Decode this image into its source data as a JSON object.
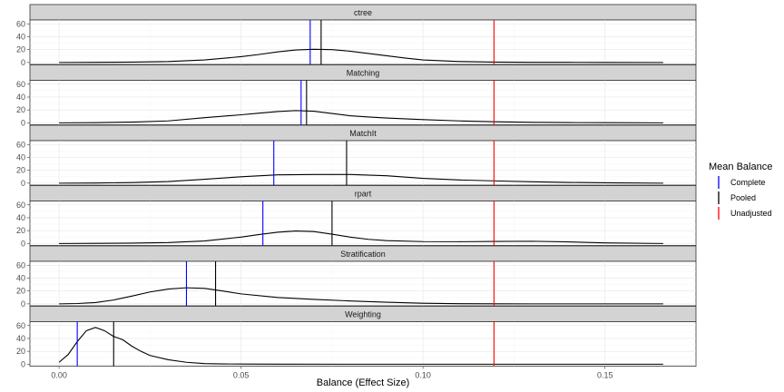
{
  "chart_data": {
    "type": "area",
    "xlabel": "Balance (Effect Size)",
    "ylabel": "",
    "xlim": [
      -0.008,
      0.175
    ],
    "ylim": [
      -3,
      66
    ],
    "x_ticks": [
      0.0,
      0.05,
      0.1,
      0.15
    ],
    "x_tick_labels": [
      "0.00",
      "0.05",
      "0.10",
      "0.15"
    ],
    "y_ticks": [
      0,
      20,
      40,
      60
    ],
    "y_tick_labels": [
      "0",
      "20",
      "40",
      "60"
    ],
    "grid": true,
    "legend": {
      "title": "Mean Balance",
      "position": "right",
      "entries": [
        {
          "label": "Complete",
          "color": "#0000ff"
        },
        {
          "label": "Pooled",
          "color": "#000000"
        },
        {
          "label": "Unadjusted",
          "color": "#ff0000"
        }
      ]
    },
    "panels": [
      {
        "name": "ctree",
        "density": {
          "x": [
            0.0,
            0.01,
            0.02,
            0.03,
            0.04,
            0.05,
            0.055,
            0.06,
            0.065,
            0.07,
            0.075,
            0.08,
            0.085,
            0.09,
            0.095,
            0.1,
            0.11,
            0.12,
            0.13,
            0.14,
            0.15,
            0.166
          ],
          "y": [
            0.0,
            0.2,
            0.6,
            1.5,
            4.0,
            9.0,
            12.5,
            16.5,
            19.5,
            20.5,
            20.0,
            17.5,
            14.0,
            10.5,
            7.0,
            4.0,
            1.5,
            0.6,
            0.3,
            0.2,
            0.1,
            0.0
          ]
        },
        "vlines": {
          "Complete": 0.069,
          "Pooled": 0.072,
          "Unadjusted": 0.1195
        }
      },
      {
        "name": "Matching",
        "density": {
          "x": [
            0.0,
            0.01,
            0.02,
            0.03,
            0.04,
            0.05,
            0.055,
            0.06,
            0.065,
            0.07,
            0.075,
            0.08,
            0.085,
            0.09,
            0.1,
            0.11,
            0.12,
            0.13,
            0.14,
            0.15,
            0.166
          ],
          "y": [
            0.0,
            0.3,
            1.2,
            3.0,
            8.0,
            12.5,
            15.0,
            17.5,
            19.0,
            18.0,
            14.5,
            11.0,
            9.0,
            7.5,
            5.0,
            3.0,
            1.6,
            0.8,
            0.4,
            0.2,
            0.0
          ]
        },
        "vlines": {
          "Complete": 0.0665,
          "Pooled": 0.068,
          "Unadjusted": 0.1195
        }
      },
      {
        "name": "MatchIt",
        "density": {
          "x": [
            0.0,
            0.01,
            0.02,
            0.03,
            0.04,
            0.05,
            0.06,
            0.07,
            0.08,
            0.09,
            0.1,
            0.11,
            0.12,
            0.13,
            0.14,
            0.15,
            0.166
          ],
          "y": [
            0.0,
            0.3,
            1.0,
            2.5,
            6.0,
            10.0,
            13.0,
            13.5,
            13.5,
            11.5,
            7.5,
            5.0,
            3.5,
            2.2,
            1.2,
            0.6,
            0.0
          ]
        },
        "vlines": {
          "Complete": 0.059,
          "Pooled": 0.079,
          "Unadjusted": 0.1195
        }
      },
      {
        "name": "rpart",
        "density": {
          "x": [
            0.0,
            0.01,
            0.02,
            0.03,
            0.04,
            0.05,
            0.055,
            0.06,
            0.065,
            0.07,
            0.075,
            0.08,
            0.085,
            0.09,
            0.1,
            0.11,
            0.12,
            0.13,
            0.14,
            0.15,
            0.166
          ],
          "y": [
            0.0,
            0.2,
            0.6,
            1.5,
            4.0,
            10.0,
            14.0,
            17.5,
            19.5,
            18.5,
            14.5,
            10.0,
            6.5,
            4.5,
            3.0,
            2.8,
            3.2,
            3.5,
            2.5,
            1.0,
            0.0
          ]
        },
        "vlines": {
          "Complete": 0.056,
          "Pooled": 0.075,
          "Unadjusted": 0.1195
        }
      },
      {
        "name": "Stratification",
        "density": {
          "x": [
            0.0,
            0.005,
            0.01,
            0.015,
            0.02,
            0.025,
            0.03,
            0.035,
            0.04,
            0.045,
            0.05,
            0.06,
            0.07,
            0.08,
            0.09,
            0.1,
            0.11,
            0.12,
            0.13,
            0.14,
            0.15,
            0.166
          ],
          "y": [
            0.0,
            0.5,
            2.0,
            6.0,
            12.0,
            18.5,
            23.0,
            25.0,
            24.0,
            20.0,
            15.5,
            10.0,
            7.0,
            4.5,
            2.5,
            1.0,
            0.3,
            0.1,
            0.0,
            0.0,
            0.0,
            0.0
          ]
        },
        "vlines": {
          "Complete": 0.035,
          "Pooled": 0.043,
          "Unadjusted": 0.1195
        }
      },
      {
        "name": "Weighting",
        "density": {
          "x": [
            0.0,
            0.0025,
            0.005,
            0.0075,
            0.01,
            0.0125,
            0.015,
            0.0175,
            0.02,
            0.0225,
            0.025,
            0.03,
            0.035,
            0.04,
            0.045,
            0.05,
            0.06,
            0.08,
            0.1,
            0.12,
            0.14,
            0.166
          ],
          "y": [
            3.0,
            15.0,
            35.0,
            52.0,
            57.0,
            52.0,
            43.0,
            38.0,
            28.0,
            20.0,
            13.5,
            7.0,
            3.0,
            1.0,
            0.4,
            0.3,
            0.1,
            0.0,
            0.0,
            0.0,
            0.0,
            0.0
          ]
        },
        "vlines": {
          "Complete": 0.005,
          "Pooled": 0.015,
          "Unadjusted": 0.1195
        }
      }
    ]
  }
}
